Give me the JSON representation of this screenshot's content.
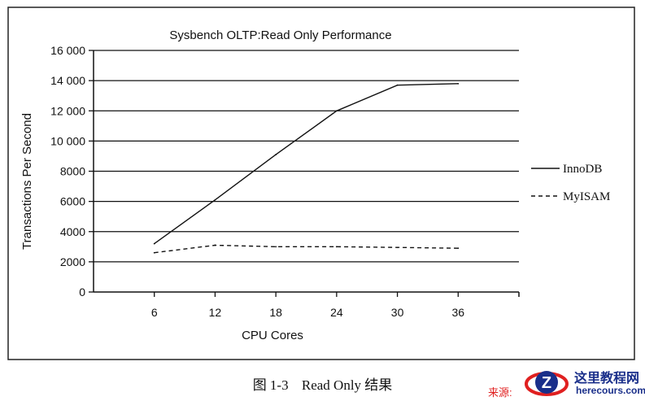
{
  "chart_data": {
    "type": "line",
    "title": "Sysbench OLTP:Read Only Performance",
    "xlabel": "CPU Cores",
    "ylabel": "Transactions Per Second",
    "x_ticks": [
      "6",
      "12",
      "18",
      "24",
      "30",
      "36"
    ],
    "x_range": [
      0,
      42
    ],
    "y_range": [
      0,
      16000
    ],
    "y_ticks": [
      {
        "value": 0,
        "label": "0"
      },
      {
        "value": 2000,
        "label": "2000"
      },
      {
        "value": 4000,
        "label": "4000"
      },
      {
        "value": 6000,
        "label": "6000"
      },
      {
        "value": 8000,
        "label": "8000"
      },
      {
        "value": 10000,
        "label": "10 000"
      },
      {
        "value": 12000,
        "label": "12 000"
      },
      {
        "value": 14000,
        "label": "14 000"
      },
      {
        "value": 16000,
        "label": "16 000"
      }
    ],
    "grid": "horizontal",
    "legend_position": "right",
    "series": [
      {
        "name": "InnoDB",
        "style": "solid",
        "x": [
          6,
          12,
          18,
          24,
          30,
          36
        ],
        "y": [
          3200,
          6100,
          9100,
          12000,
          13700,
          13800
        ]
      },
      {
        "name": "MyISAM",
        "style": "dashed",
        "x": [
          6,
          12,
          18,
          24,
          30,
          36
        ],
        "y": [
          2600,
          3100,
          3000,
          3000,
          2950,
          2900
        ]
      }
    ]
  },
  "caption": {
    "figure": "图 1-3",
    "text": "Read Only 结果"
  },
  "watermark": {
    "source_label": "来源:",
    "site_name": "这里教程网",
    "site_url": "herecours.com",
    "brand_color": "#1a2f8a"
  }
}
